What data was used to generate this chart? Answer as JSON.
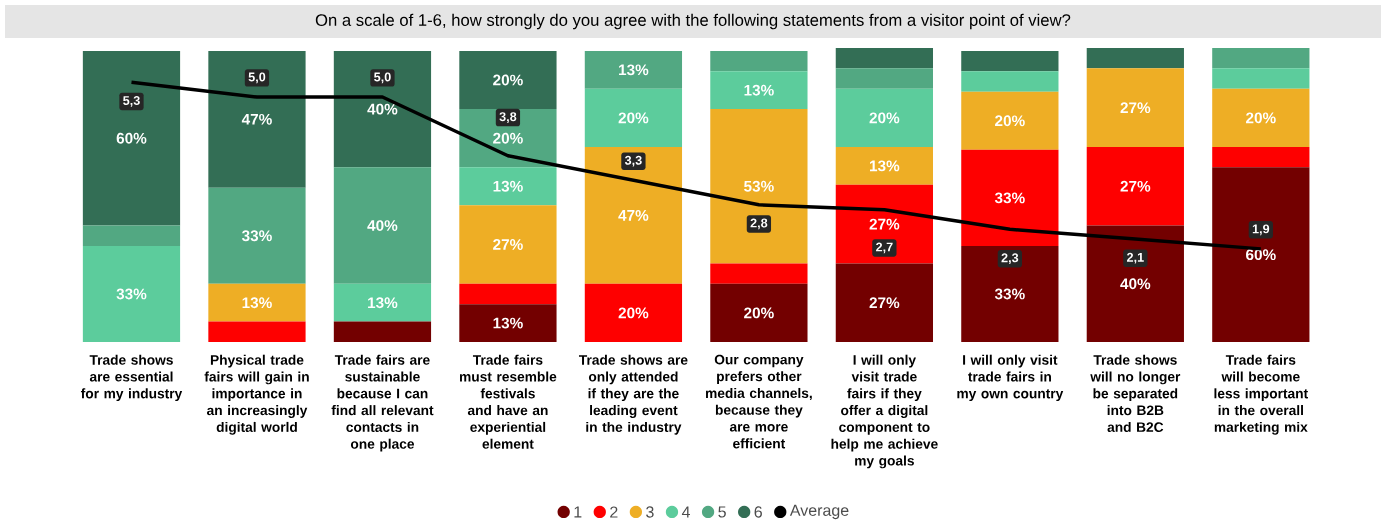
{
  "chart_data": {
    "type": "bar",
    "stacked": true,
    "title": "On a scale of 1-6, how strongly do you agree with the following statements from a visitor point of view?",
    "categories": [
      "Trade shows are essential for my industry",
      "Physical trade fairs will gain in importance in an increasingly digital world",
      "Trade fairs are sustainable because I can find all relevant contacts in one place",
      "Trade fairs must resemble festivals and have an experiential element",
      "Trade shows are only attended if they are the leading event in the industry",
      "Our company prefers other media channels, because they are more efficient",
      "I will only visit trade fairs if they offer a digital component to help me achieve my goals",
      "I will only visit trade fairs in my own country",
      "Trade shows will no longer be separated into B2B and B2C",
      "Trade fairs will become less important in the overall marketing mix"
    ],
    "series": [
      {
        "name": "1",
        "color": "#730000",
        "values": [
          0,
          0,
          7,
          13,
          0,
          20,
          27,
          33,
          40,
          60
        ],
        "value_labels": [
          null,
          null,
          null,
          "13%",
          null,
          "20%",
          "27%",
          "33%",
          "40%",
          "60%"
        ]
      },
      {
        "name": "2",
        "color": "#fe0000",
        "values": [
          0,
          7,
          0,
          7,
          20,
          7,
          27,
          33,
          27,
          7
        ],
        "value_labels": [
          null,
          null,
          null,
          null,
          "20%",
          null,
          "27%",
          "33%",
          "27%",
          null
        ]
      },
      {
        "name": "3",
        "color": "#eeae25",
        "values": [
          0,
          13,
          0,
          27,
          47,
          53,
          13,
          20,
          27,
          20
        ],
        "value_labels": [
          null,
          "13%",
          null,
          "27%",
          "47%",
          "53%",
          "13%",
          "20%",
          "27%",
          "20%"
        ]
      },
      {
        "name": "4",
        "color": "#5ccc9c",
        "values": [
          33,
          0,
          13,
          13,
          20,
          13,
          20,
          7,
          0,
          7
        ],
        "value_labels": [
          "33%",
          null,
          "13%",
          "13%",
          "20%",
          "13%",
          "20%",
          null,
          null,
          null
        ]
      },
      {
        "name": "5",
        "color": "#52a882",
        "values": [
          7,
          33,
          40,
          20,
          13,
          7,
          7,
          0,
          0,
          7
        ],
        "value_labels": [
          null,
          "33%",
          "40%",
          "20%",
          "13%",
          null,
          null,
          null,
          null,
          null
        ]
      },
      {
        "name": "6",
        "color": "#336e55",
        "values": [
          60,
          47,
          40,
          20,
          0,
          0,
          7,
          7,
          7,
          0
        ],
        "value_labels": [
          "60%",
          "47%",
          "40%",
          "20%",
          null,
          null,
          null,
          null,
          null,
          null
        ]
      },
      {
        "name": "Average",
        "type": "line",
        "axis": "y2",
        "color": "#000000",
        "values": [
          5.3,
          5.0,
          5.0,
          3.8,
          3.3,
          2.8,
          2.7,
          2.3,
          2.1,
          1.9
        ],
        "value_labels": [
          "5,3",
          "5,0",
          "5,0",
          "3,8",
          "3,3",
          "2,8",
          "2,7",
          "2,3",
          "2,1",
          "1,9"
        ]
      }
    ],
    "y2lim": [
      0,
      6
    ],
    "legend": "bottom"
  }
}
